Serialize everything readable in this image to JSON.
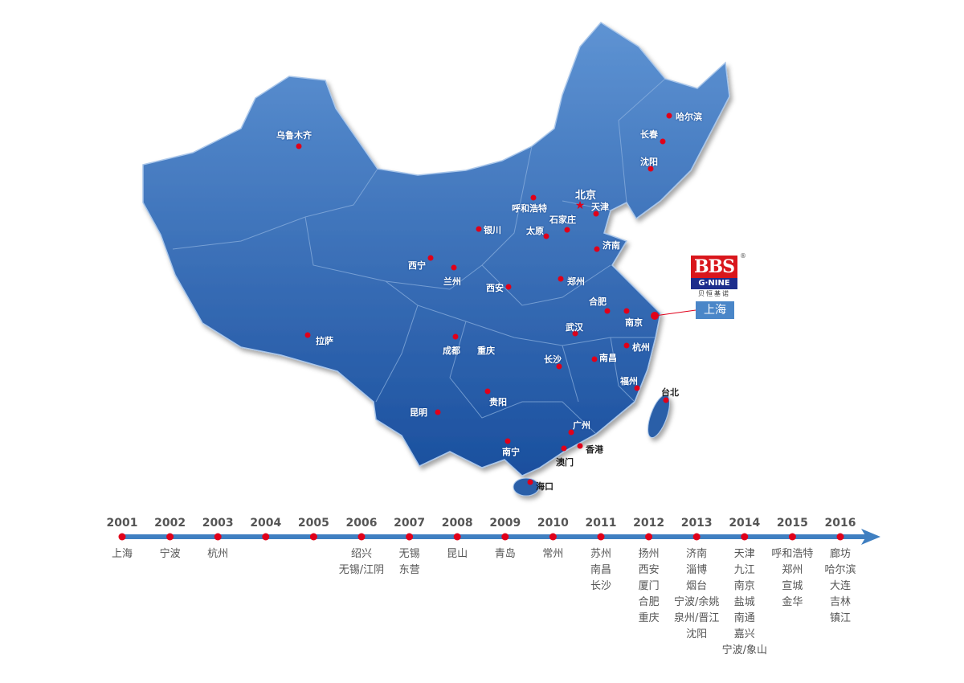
{
  "map": {
    "fill_top": "#5e93d3",
    "fill_bottom": "#1a4f9e",
    "dot_color": "#e0001a",
    "capital": "北京",
    "cities": [
      "乌鲁木齐",
      "哈尔滨",
      "长春",
      "沈阳",
      "北京",
      "天津",
      "呼和浩特",
      "石家庄",
      "太原",
      "银川",
      "济南",
      "西宁",
      "兰州",
      "西安",
      "郑州",
      "合肥",
      "南京",
      "武汉",
      "杭州",
      "拉萨",
      "成都",
      "重庆",
      "长沙",
      "南昌",
      "福州",
      "台北",
      "贵阳",
      "昆明",
      "广州",
      "香港",
      "澳门",
      "南宁",
      "海口"
    ]
  },
  "logo": {
    "brand": "BBS",
    "sub": "G·NINE",
    "chinese": "贝恒基诺",
    "registered": "®"
  },
  "headquarters": "上海",
  "timeline": {
    "line_color": "#3f7fc1",
    "entries": [
      {
        "year": "2001",
        "cities": [
          "上海"
        ]
      },
      {
        "year": "2002",
        "cities": [
          "宁波"
        ]
      },
      {
        "year": "2003",
        "cities": [
          "杭州"
        ]
      },
      {
        "year": "2004",
        "cities": []
      },
      {
        "year": "2005",
        "cities": []
      },
      {
        "year": "2006",
        "cities": [
          "绍兴",
          "无锡/江阴"
        ]
      },
      {
        "year": "2007",
        "cities": [
          "无锡",
          "东营"
        ]
      },
      {
        "year": "2008",
        "cities": [
          "昆山"
        ]
      },
      {
        "year": "2009",
        "cities": [
          "青岛"
        ]
      },
      {
        "year": "2010",
        "cities": [
          "常州"
        ]
      },
      {
        "year": "2011",
        "cities": [
          "苏州",
          "南昌",
          "长沙"
        ]
      },
      {
        "year": "2012",
        "cities": [
          "扬州",
          "西安",
          "厦门",
          "合肥",
          "重庆"
        ]
      },
      {
        "year": "2013",
        "cities": [
          "济南",
          "淄博",
          "烟台",
          "宁波/余姚",
          "泉州/晋江",
          "沈阳"
        ]
      },
      {
        "year": "2014",
        "cities": [
          "天津",
          "九江",
          "南京",
          "盐城",
          "南通",
          "嘉兴",
          "宁波/象山"
        ]
      },
      {
        "year": "2015",
        "cities": [
          "呼和浩特",
          "郑州",
          "宣城",
          "金华"
        ]
      },
      {
        "year": "2016",
        "cities": [
          "廊坊",
          "哈尔滨",
          "大连",
          "吉林",
          "镇江"
        ]
      }
    ]
  }
}
